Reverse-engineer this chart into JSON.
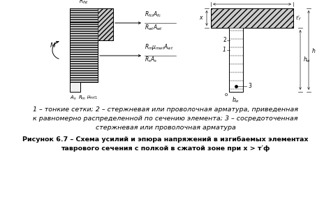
{
  "bg_color": "#ffffff",
  "line_color": "#000000",
  "caption_line1": "1 – тонкие сетки; 2 – стержневая или проволочная арматура, приведенная",
  "caption_line2": "к равномерно распределенной по сечению элемента; 3 – сосредоточенная",
  "caption_line3": "стержневая или проволочная арматура",
  "fig_caption1": "Рисунок 6.7 – Схема усилий и эпюра напряжений в изгибаемых элементах",
  "fig_caption2": "таврового сечения с полкой в сжатой зоне при х > т′ф"
}
